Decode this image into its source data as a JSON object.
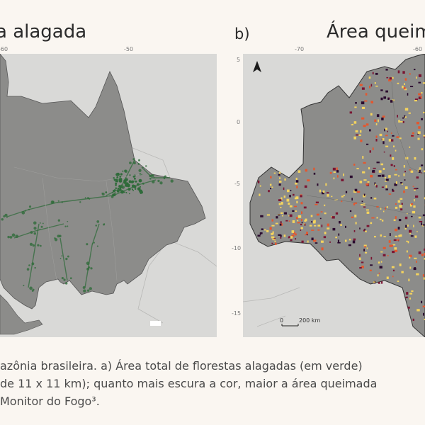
{
  "panel_a": {
    "title": "a alagada",
    "ticks_top": [
      "-60",
      "-50"
    ]
  },
  "panel_b": {
    "label": "b)",
    "title": "Área queim",
    "ticks_top": [
      "-70",
      "-60"
    ],
    "ticks_left": [
      "5",
      "0",
      "-5",
      "-10",
      "-15"
    ],
    "scale_zero": "0",
    "scale_label": "200 km",
    "north_arrow": "north-arrow-icon"
  },
  "caption": {
    "line1": "azônia brasileira. a) Área total de florestas alagadas (em verde)",
    "line2": "de 11 x 11 km); quanto mais escura a cor, maior a área queimada",
    "line3": "Monitor do Fogo³."
  },
  "colors": {
    "background": "#faf6f1",
    "land": "#8c8c8a",
    "outside": "#d9d9d7",
    "flooded_forest": "#2f6b3a",
    "fire_low": "#f4d35e",
    "fire_mid": "#e4572e",
    "fire_high": "#7a1532",
    "fire_max": "#2a0a2e"
  }
}
